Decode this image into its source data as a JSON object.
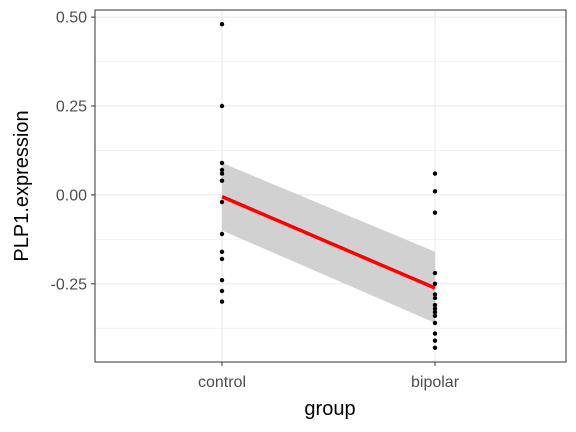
{
  "chart_data": {
    "type": "scatter",
    "xlabel": "group",
    "ylabel": "PLP1.expression",
    "categories": [
      "control",
      "bipolar"
    ],
    "yticks": [
      0.5,
      0.25,
      0.0,
      -0.25
    ],
    "ytick_labels": [
      "0.50",
      "0.25",
      "0.00",
      "-0.25"
    ],
    "ylim": [
      -0.47,
      0.52
    ],
    "grid": true,
    "points": [
      {
        "group": "control",
        "values": [
          0.48,
          0.25,
          0.09,
          0.07,
          0.06,
          0.04,
          -0.02,
          -0.11,
          -0.16,
          -0.18,
          -0.24,
          -0.27,
          -0.3
        ]
      },
      {
        "group": "bipolar",
        "values": [
          0.06,
          0.01,
          -0.05,
          -0.22,
          -0.25,
          -0.28,
          -0.29,
          -0.31,
          -0.32,
          -0.33,
          -0.34,
          -0.36,
          -0.39,
          -0.41,
          -0.43
        ]
      }
    ],
    "fit_line": {
      "start": -0.005,
      "end": -0.262,
      "color": "#ff0000"
    },
    "confidence_band": {
      "start": [
        -0.1,
        0.09
      ],
      "end": [
        -0.36,
        -0.16
      ],
      "color": "#cccccc"
    },
    "point_color": "#000000"
  }
}
